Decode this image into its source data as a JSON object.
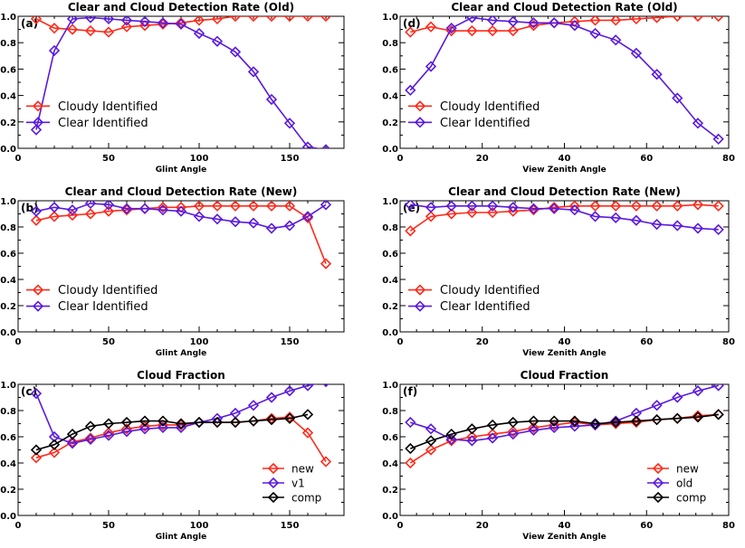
{
  "colors": {
    "new": "#ff2a1a",
    "old": "#5a1adf",
    "comp": "#000000"
  },
  "chart_data": [
    {
      "type": "line",
      "panel": "(a)",
      "title": "Clear and Cloud Detection Rate (Old)",
      "xlabel": "Glint Angle",
      "ylabel": "",
      "xlim": [
        0,
        180
      ],
      "ylim": [
        0,
        1.0
      ],
      "xticks": [
        0,
        50,
        100,
        150
      ],
      "yticks": [
        0.0,
        0.2,
        0.4,
        0.6,
        0.8,
        1.0
      ],
      "legend_position": "middle-left",
      "legend_style": "large",
      "series": [
        {
          "name": "Cloudy Identified",
          "color": "#ff2a1a",
          "x": [
            10,
            20,
            30,
            40,
            50,
            60,
            70,
            80,
            90,
            100,
            110,
            120,
            130,
            140,
            150,
            160,
            170
          ],
          "y": [
            0.98,
            0.91,
            0.9,
            0.89,
            0.88,
            0.92,
            0.93,
            0.94,
            0.95,
            0.97,
            0.98,
            1.0,
            1.0,
            1.0,
            1.0,
            1.0,
            1.0
          ]
        },
        {
          "name": "Clear Identified",
          "color": "#5a1adf",
          "x": [
            10,
            20,
            30,
            40,
            50,
            60,
            70,
            80,
            90,
            100,
            110,
            120,
            130,
            140,
            150,
            160,
            170
          ],
          "y": [
            0.14,
            0.74,
            0.98,
            0.99,
            0.98,
            0.97,
            0.96,
            0.95,
            0.94,
            0.87,
            0.81,
            0.73,
            0.58,
            0.37,
            0.19,
            0.01,
            -0.01
          ]
        }
      ]
    },
    {
      "type": "line",
      "panel": "(d)",
      "title": "Clear and Cloud Detection Rate (Old)",
      "xlabel": "View Zenith Angle",
      "ylabel": "",
      "xlim": [
        0,
        80
      ],
      "ylim": [
        0,
        1.0
      ],
      "xticks": [
        0,
        20,
        40,
        60,
        80
      ],
      "yticks": [
        0.0,
        0.2,
        0.4,
        0.6,
        0.8,
        1.0
      ],
      "legend_position": "middle-left",
      "legend_style": "large",
      "series": [
        {
          "name": "Cloudy Identified",
          "color": "#ff2a1a",
          "x": [
            2.5,
            7.5,
            12.5,
            17.5,
            22.5,
            27.5,
            32.5,
            37.5,
            42.5,
            47.5,
            52.5,
            57.5,
            62.5,
            67.5,
            72.5,
            77.5
          ],
          "y": [
            0.88,
            0.92,
            0.89,
            0.89,
            0.89,
            0.89,
            0.93,
            0.95,
            0.96,
            0.97,
            0.97,
            0.98,
            0.99,
            1.0,
            1.0,
            1.0
          ]
        },
        {
          "name": "Clear Identified",
          "color": "#5a1adf",
          "x": [
            2.5,
            7.5,
            12.5,
            17.5,
            22.5,
            27.5,
            32.5,
            37.5,
            42.5,
            47.5,
            52.5,
            57.5,
            62.5,
            67.5,
            72.5,
            77.5
          ],
          "y": [
            0.44,
            0.62,
            0.91,
            0.99,
            0.97,
            0.96,
            0.95,
            0.95,
            0.93,
            0.87,
            0.82,
            0.72,
            0.56,
            0.38,
            0.19,
            0.07
          ]
        }
      ]
    },
    {
      "type": "line",
      "panel": "(b)",
      "title": "Clear and Cloud Detection Rate (New)",
      "xlabel": "Glint Angle",
      "ylabel": "",
      "xlim": [
        0,
        180
      ],
      "ylim": [
        0,
        1.0
      ],
      "xticks": [
        0,
        50,
        100,
        150
      ],
      "yticks": [
        0.0,
        0.2,
        0.4,
        0.6,
        0.8,
        1.0
      ],
      "legend_position": "lower-left",
      "legend_style": "large",
      "series": [
        {
          "name": "Cloudy Identified",
          "color": "#ff2a1a",
          "x": [
            10,
            20,
            30,
            40,
            50,
            60,
            70,
            80,
            90,
            100,
            110,
            120,
            130,
            140,
            150,
            160,
            170
          ],
          "y": [
            0.85,
            0.88,
            0.89,
            0.9,
            0.92,
            0.93,
            0.94,
            0.95,
            0.95,
            0.96,
            0.96,
            0.96,
            0.96,
            0.96,
            0.96,
            0.87,
            0.52
          ]
        },
        {
          "name": "Clear Identified",
          "color": "#5a1adf",
          "x": [
            10,
            20,
            30,
            40,
            50,
            60,
            70,
            80,
            90,
            100,
            110,
            120,
            130,
            140,
            150,
            160,
            170
          ],
          "y": [
            0.92,
            0.95,
            0.93,
            0.98,
            0.97,
            0.94,
            0.94,
            0.93,
            0.92,
            0.88,
            0.86,
            0.84,
            0.83,
            0.79,
            0.81,
            0.88,
            0.97
          ]
        }
      ]
    },
    {
      "type": "line",
      "panel": "(e)",
      "title": "Clear and Cloud Detection Rate (New)",
      "xlabel": "View Zenith Angle",
      "ylabel": "",
      "xlim": [
        0,
        80
      ],
      "ylim": [
        0,
        1.0
      ],
      "xticks": [
        0,
        20,
        40,
        60,
        80
      ],
      "yticks": [
        0.0,
        0.2,
        0.4,
        0.6,
        0.8,
        1.0
      ],
      "legend_position": "lower-left",
      "legend_style": "large",
      "series": [
        {
          "name": "Cloudy Identified",
          "color": "#ff2a1a",
          "x": [
            2.5,
            7.5,
            12.5,
            17.5,
            22.5,
            27.5,
            32.5,
            37.5,
            42.5,
            47.5,
            52.5,
            57.5,
            62.5,
            67.5,
            72.5,
            77.5
          ],
          "y": [
            0.77,
            0.88,
            0.9,
            0.91,
            0.91,
            0.92,
            0.93,
            0.95,
            0.96,
            0.96,
            0.96,
            0.96,
            0.96,
            0.96,
            0.97,
            0.96
          ]
        },
        {
          "name": "Clear Identified",
          "color": "#5a1adf",
          "x": [
            2.5,
            7.5,
            12.5,
            17.5,
            22.5,
            27.5,
            32.5,
            37.5,
            42.5,
            47.5,
            52.5,
            57.5,
            62.5,
            67.5,
            72.5,
            77.5
          ],
          "y": [
            0.97,
            0.95,
            0.96,
            0.96,
            0.96,
            0.95,
            0.94,
            0.94,
            0.93,
            0.88,
            0.87,
            0.85,
            0.82,
            0.81,
            0.79,
            0.78
          ]
        }
      ]
    },
    {
      "type": "line",
      "panel": "(c)",
      "title": "Cloud Fraction",
      "xlabel": "Glint Angle",
      "ylabel": "",
      "xlim": [
        0,
        180
      ],
      "ylim": [
        0,
        1.0
      ],
      "xticks": [
        0,
        50,
        100,
        150
      ],
      "yticks": [
        0.0,
        0.2,
        0.4,
        0.6,
        0.8,
        1.0
      ],
      "legend_position": "bottom-right",
      "legend_style": "small",
      "series": [
        {
          "name": "new",
          "color": "#ff2a1a",
          "x": [
            10,
            20,
            30,
            40,
            50,
            60,
            70,
            80,
            90,
            100,
            110,
            120,
            130,
            140,
            150,
            160,
            170
          ],
          "y": [
            0.44,
            0.48,
            0.56,
            0.59,
            0.63,
            0.66,
            0.68,
            0.69,
            0.69,
            0.71,
            0.71,
            0.71,
            0.72,
            0.74,
            0.75,
            0.63,
            0.41
          ]
        },
        {
          "name": "v1",
          "color": "#5a1adf",
          "x": [
            10,
            20,
            30,
            40,
            50,
            60,
            70,
            80,
            90,
            100,
            110,
            120,
            130,
            140,
            150,
            160,
            170
          ],
          "y": [
            0.93,
            0.6,
            0.55,
            0.58,
            0.61,
            0.64,
            0.66,
            0.67,
            0.67,
            0.71,
            0.74,
            0.78,
            0.84,
            0.9,
            0.95,
            0.99,
            1.02
          ]
        },
        {
          "name": "comp",
          "color": "#000000",
          "x": [
            10,
            20,
            30,
            40,
            50,
            60,
            70,
            80,
            90,
            100,
            110,
            120,
            130,
            140,
            150,
            160
          ],
          "y": [
            0.5,
            0.54,
            0.62,
            0.68,
            0.7,
            0.71,
            0.72,
            0.72,
            0.7,
            0.71,
            0.71,
            0.71,
            0.72,
            0.73,
            0.74,
            0.77
          ]
        }
      ]
    },
    {
      "type": "line",
      "panel": "(f)",
      "title": "Cloud Fraction",
      "xlabel": "View Zenith Angle",
      "ylabel": "",
      "xlim": [
        0,
        80
      ],
      "ylim": [
        0,
        1.0
      ],
      "xticks": [
        0,
        20,
        40,
        60,
        80
      ],
      "yticks": [
        0.0,
        0.2,
        0.4,
        0.6,
        0.8,
        1.0
      ],
      "legend_position": "bottom-right",
      "legend_style": "small",
      "series": [
        {
          "name": "new",
          "color": "#ff2a1a",
          "x": [
            2.5,
            7.5,
            12.5,
            17.5,
            22.5,
            27.5,
            32.5,
            37.5,
            42.5,
            47.5,
            52.5,
            57.5,
            62.5,
            67.5,
            72.5,
            77.5
          ],
          "y": [
            0.4,
            0.5,
            0.57,
            0.6,
            0.62,
            0.64,
            0.67,
            0.69,
            0.71,
            0.69,
            0.7,
            0.71,
            0.73,
            0.74,
            0.76,
            0.77
          ]
        },
        {
          "name": "old",
          "color": "#5a1adf",
          "x": [
            2.5,
            7.5,
            12.5,
            17.5,
            22.5,
            27.5,
            32.5,
            37.5,
            42.5,
            47.5,
            52.5,
            57.5,
            62.5,
            67.5,
            72.5,
            77.5
          ],
          "y": [
            0.71,
            0.66,
            0.58,
            0.57,
            0.59,
            0.62,
            0.65,
            0.67,
            0.68,
            0.69,
            0.72,
            0.78,
            0.84,
            0.9,
            0.95,
            0.99
          ]
        },
        {
          "name": "comp",
          "color": "#000000",
          "x": [
            2.5,
            7.5,
            12.5,
            17.5,
            22.5,
            27.5,
            32.5,
            37.5,
            42.5,
            47.5,
            52.5,
            57.5,
            62.5,
            67.5,
            72.5,
            77.5
          ],
          "y": [
            0.51,
            0.57,
            0.62,
            0.66,
            0.69,
            0.71,
            0.72,
            0.72,
            0.72,
            0.7,
            0.71,
            0.72,
            0.73,
            0.74,
            0.75,
            0.77
          ]
        }
      ]
    }
  ]
}
